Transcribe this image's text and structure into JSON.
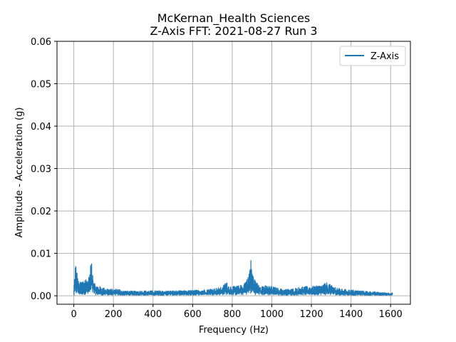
{
  "chart_data": {
    "type": "line",
    "title_line1": "McKernan_Health Sciences",
    "title_line2": "Z-Axis FFT: 2021-08-27 Run 3",
    "xlabel": "Frequency (Hz)",
    "ylabel": "Amplitude - Acceleration (g)",
    "xlim": [
      -85,
      1700
    ],
    "ylim": [
      -0.002,
      0.06
    ],
    "xticks": [
      0,
      200,
      400,
      600,
      800,
      1000,
      1200,
      1400,
      1600
    ],
    "yticks": [
      "0.00",
      "0.01",
      "0.02",
      "0.03",
      "0.04",
      "0.05",
      "0.06"
    ],
    "grid": true,
    "legend_position": "top-right",
    "series": [
      {
        "name": "Z-Axis",
        "color": "#1f77b4",
        "envelope": {
          "x": [
            0,
            8,
            15,
            25,
            40,
            55,
            70,
            80,
            90,
            100,
            110,
            130,
            160,
            200,
            220,
            250,
            300,
            350,
            400,
            450,
            500,
            550,
            600,
            650,
            700,
            750,
            770,
            780,
            800,
            850,
            880,
            895,
            905,
            920,
            950,
            1000,
            1050,
            1100,
            1150,
            1200,
            1250,
            1280,
            1300,
            1350,
            1400,
            1450,
            1500,
            1550,
            1610
          ],
          "upper": [
            0.0015,
            0.0082,
            0.006,
            0.003,
            0.0035,
            0.0042,
            0.004,
            0.005,
            0.0095,
            0.004,
            0.0025,
            0.0022,
            0.0018,
            0.0015,
            0.0017,
            0.0012,
            0.0011,
            0.0012,
            0.0012,
            0.0012,
            0.0012,
            0.0012,
            0.0013,
            0.0014,
            0.0017,
            0.002,
            0.0035,
            0.0025,
            0.0022,
            0.0025,
            0.0045,
            0.0088,
            0.005,
            0.0032,
            0.0025,
            0.0022,
            0.0016,
            0.0016,
            0.0022,
            0.0022,
            0.0025,
            0.0032,
            0.0025,
            0.0016,
            0.0014,
            0.0012,
            0.001,
            0.0008,
            0.0007
          ],
          "lower": [
            0.0,
            0.0002,
            0.0003,
            0.0002,
            0.0002,
            0.0003,
            0.0002,
            0.0003,
            0.0003,
            0.0002,
            0.0002,
            0.0001,
            0.0001,
            0.0001,
            0.0001,
            0.0001,
            0.0001,
            0.0001,
            0.0001,
            0.0001,
            0.0001,
            0.0001,
            0.0001,
            0.0002,
            0.0002,
            0.0002,
            0.0003,
            0.0002,
            0.0002,
            0.0002,
            0.0003,
            0.0004,
            0.0003,
            0.0002,
            0.0002,
            0.0002,
            0.0001,
            0.0001,
            0.0002,
            0.0002,
            0.0002,
            0.0002,
            0.0002,
            0.0001,
            0.0001,
            0.0001,
            0.0001,
            0.0001,
            0.0001
          ]
        }
      }
    ]
  }
}
